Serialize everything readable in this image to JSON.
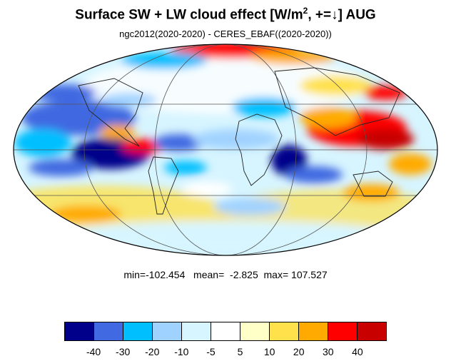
{
  "title": {
    "main": "Surface SW + LW cloud effect [W/m",
    "sup": "2",
    "tail": ", +=↓]  AUG"
  },
  "subtitle": "ngc2012(2020-2020) - CERES_EBAF((2020-2020))",
  "stats": {
    "min_label": "min=",
    "min": "-102.454",
    "mean_label": "mean=",
    "mean": "-2.825",
    "max_label": "max=",
    "max": "107.527"
  },
  "colorbar": {
    "colors": [
      "#00008b",
      "#4169e1",
      "#00bfff",
      "#a0d2ff",
      "#d7f5ff",
      "#ffffff",
      "#ffffc8",
      "#ffe14b",
      "#ffaa00",
      "#ff0000",
      "#c80000"
    ],
    "labels": [
      "-40",
      "-30",
      "-20",
      "-10",
      "-5",
      "5",
      "10",
      "20",
      "30",
      "40"
    ]
  }
}
